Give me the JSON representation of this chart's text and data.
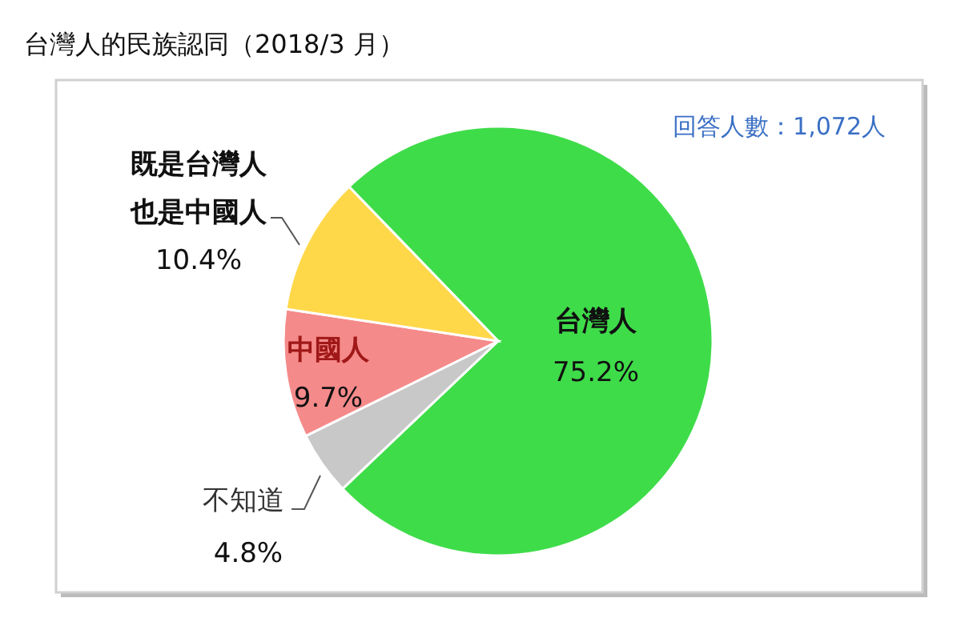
{
  "chart_data": {
    "type": "pie",
    "title": "台灣人的民族認同（2018/3 月）",
    "categories": [
      "台灣人",
      "不知道",
      "中國人",
      "既是台灣人也是中國人"
    ],
    "values": [
      75.2,
      4.8,
      9.7,
      10.4
    ],
    "value_labels": [
      "75.2%",
      "4.8%",
      "9.7%",
      "10.4%"
    ],
    "colors": [
      "#3fdc4a",
      "#c8c8c8",
      "#f58a8a",
      "#ffd84a"
    ],
    "annotations": [
      "回答人數：1,072人"
    ],
    "legend": false
  }
}
